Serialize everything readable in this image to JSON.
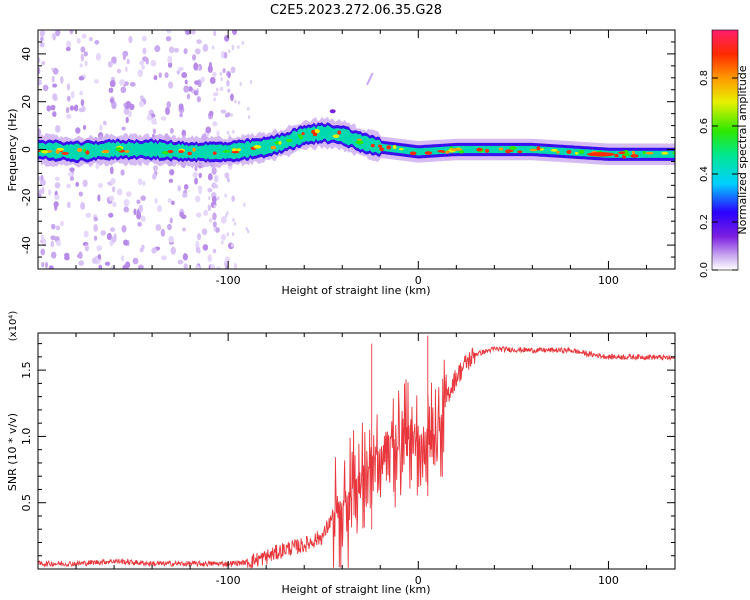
{
  "figure": {
    "title": "C2E5.2023.272.06.35.G28"
  },
  "chart_data": [
    {
      "type": "heatmap",
      "title": "C2E5.2023.272.06.35.G28",
      "xlabel": "Height of straight line (km)",
      "ylabel": "Frequency (Hz)",
      "xlim": [
        -200,
        135
      ],
      "ylim": [
        -50,
        50
      ],
      "xticks": [
        -100,
        0,
        100
      ],
      "yticks": [
        40,
        20,
        0,
        -20,
        -40
      ],
      "colorbar": {
        "label": "Normalized spectral amplitude",
        "range": [
          0,
          1
        ],
        "ticks": [
          0.0,
          0.2,
          0.4,
          0.6,
          0.8
        ]
      },
      "ridge_frequency_hz": [
        [
          -200,
          0
        ],
        [
          -180,
          -1
        ],
        [
          -160,
          0
        ],
        [
          -140,
          0
        ],
        [
          -120,
          -1
        ],
        [
          -100,
          -1
        ],
        [
          -90,
          0
        ],
        [
          -80,
          1
        ],
        [
          -70,
          3
        ],
        [
          -60,
          6
        ],
        [
          -50,
          7
        ],
        [
          -40,
          6
        ],
        [
          -30,
          3
        ],
        [
          -20,
          1
        ],
        [
          -10,
          0
        ],
        [
          0,
          -1
        ],
        [
          20,
          0
        ],
        [
          40,
          0
        ],
        [
          60,
          0
        ],
        [
          80,
          -1
        ],
        [
          100,
          -2
        ],
        [
          135,
          -2
        ]
      ]
    },
    {
      "type": "line",
      "xlabel": "Height of straight line (km)",
      "ylabel": "SNR (10 * v/v)",
      "y_multiplier": "(x10⁴)",
      "xlim": [
        -200,
        135
      ],
      "ylim": [
        0,
        1.78
      ],
      "xticks": [
        -100,
        0,
        100
      ],
      "yticks": [
        0.5,
        1.0,
        1.5
      ],
      "ytick_labels": [
        "0.5",
        "1.0",
        "1.5"
      ],
      "color": "#e8383d",
      "series": [
        {
          "x": [
            -200,
            -180,
            -160,
            -150,
            -140,
            -120,
            -100,
            -90,
            -80,
            -70,
            -60,
            -50,
            -45,
            -40,
            -35,
            -30,
            -25,
            -20,
            -15,
            -10,
            -5,
            0,
            5,
            10,
            15,
            20,
            25,
            30,
            40,
            60,
            80,
            90,
            100,
            120,
            135
          ],
          "y": [
            0.04,
            0.04,
            0.06,
            0.05,
            0.04,
            0.04,
            0.04,
            0.05,
            0.09,
            0.15,
            0.18,
            0.25,
            0.4,
            0.5,
            0.6,
            0.75,
            0.85,
            0.9,
            1.0,
            0.95,
            1.1,
            1.0,
            1.05,
            1.05,
            1.3,
            1.45,
            1.55,
            1.62,
            1.66,
            1.65,
            1.65,
            1.62,
            1.6,
            1.6,
            1.59
          ]
        }
      ]
    }
  ]
}
